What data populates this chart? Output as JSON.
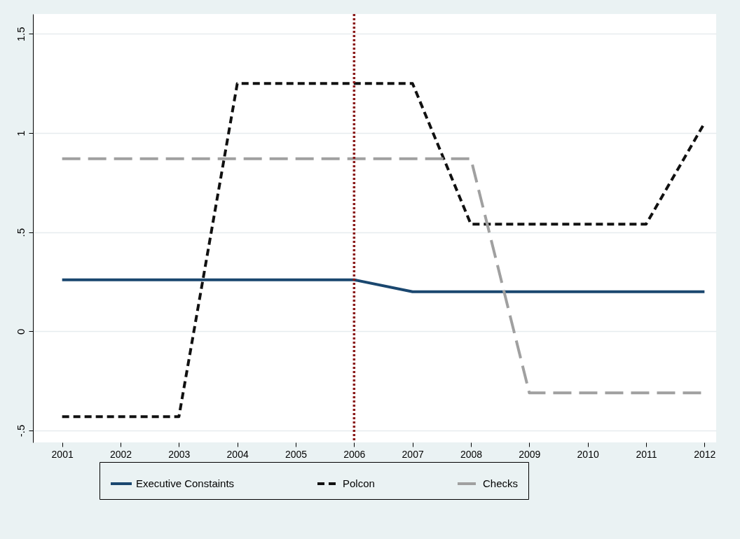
{
  "chart_data": {
    "type": "line",
    "x": [
      2001,
      2002,
      2003,
      2004,
      2005,
      2006,
      2007,
      2008,
      2009,
      2010,
      2011,
      2012
    ],
    "series": [
      {
        "name": "Executive Constaints",
        "color": "#1a476f",
        "line_style": "solid",
        "values": [
          0.26,
          0.26,
          0.26,
          0.26,
          0.26,
          0.26,
          0.2,
          0.2,
          0.2,
          0.2,
          0.2,
          0.2
        ]
      },
      {
        "name": "Polcon",
        "color": "#111111",
        "line_style": "dashed",
        "values": [
          -0.43,
          -0.43,
          -0.43,
          1.25,
          1.25,
          1.25,
          1.25,
          0.54,
          0.54,
          0.54,
          0.54,
          1.05
        ]
      },
      {
        "name": "Checks",
        "color": "#a0a0a0",
        "line_style": "longdash",
        "values": [
          0.87,
          0.87,
          0.87,
          0.87,
          0.87,
          0.87,
          0.87,
          0.87,
          -0.31,
          -0.31,
          -0.31,
          -0.31
        ]
      }
    ],
    "xlim": [
      2000.5,
      2012.2
    ],
    "xticks": [
      2001,
      2002,
      2003,
      2004,
      2005,
      2006,
      2007,
      2008,
      2009,
      2010,
      2011,
      2012
    ],
    "ylim": [
      -0.56,
      1.6
    ],
    "yticks": [
      {
        "value": -0.5,
        "label": "-.5"
      },
      0,
      {
        "value": 0.5,
        "label": ".5"
      },
      1,
      1.5
    ],
    "ref_lines": [
      {
        "axis": "x",
        "value": 2006,
        "color": "#8b1a1a",
        "line_style": "dotted"
      }
    ],
    "grid": "y",
    "legend": "bottom",
    "marker": "none"
  }
}
